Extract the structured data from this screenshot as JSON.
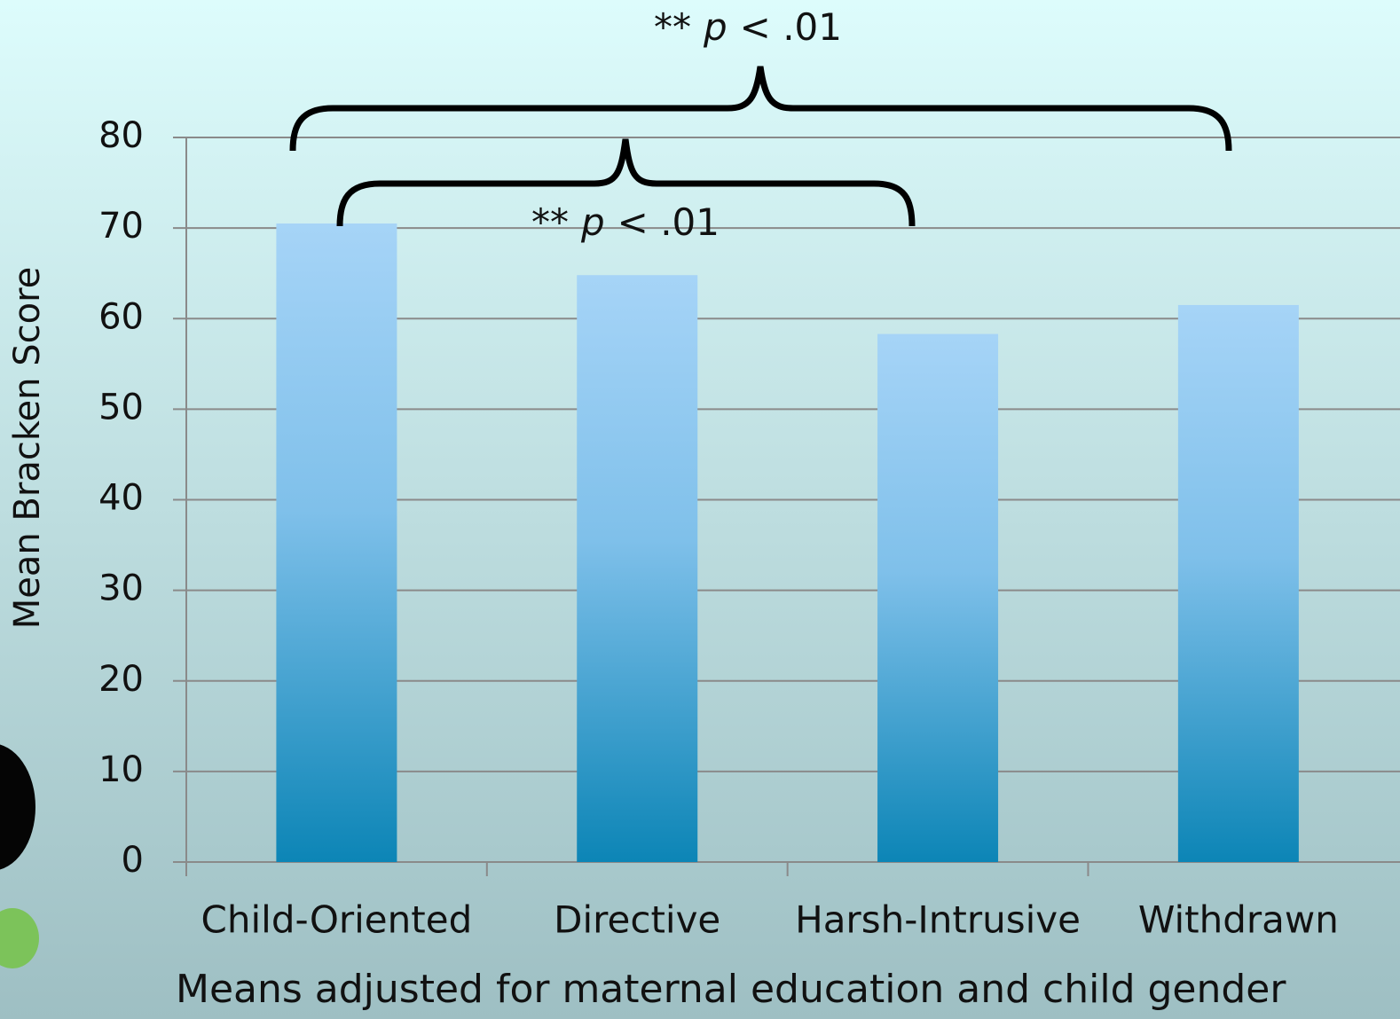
{
  "chart_data": {
    "type": "bar",
    "y_label": "Mean Bracken Score",
    "x_label": "Means adjusted for maternal education and child gender",
    "categories": [
      "Child-Oriented",
      "Directive",
      "Harsh-Intrusive",
      "Withdrawn"
    ],
    "values": [
      70.5,
      64.8,
      58.3,
      61.5
    ],
    "gradient": [
      "#a6d4f7",
      "#0c85b6"
    ],
    "ylim": [
      0,
      80
    ],
    "yticks": [
      0,
      10,
      20,
      30,
      40,
      50,
      60,
      70,
      80
    ],
    "grid": true,
    "annotations": [
      {
        "parts": [
          "**",
          "p",
          "< .01"
        ]
      },
      {
        "parts": [
          "**",
          "p",
          "< .01"
        ]
      }
    ]
  }
}
